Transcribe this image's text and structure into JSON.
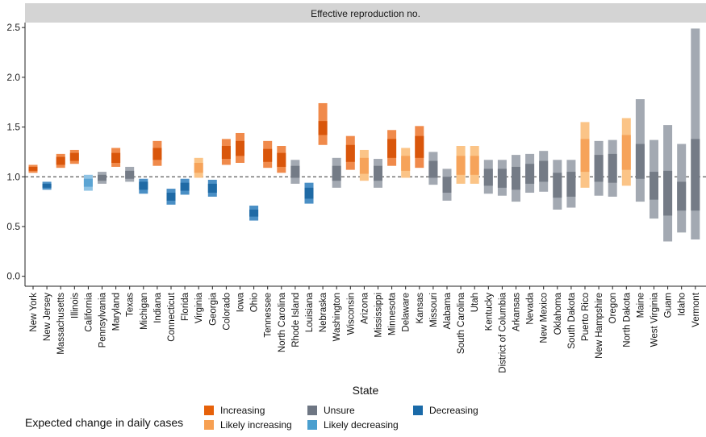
{
  "chart_data": {
    "type": "bar",
    "facet_title": "Effective reproduction no.",
    "xlabel": "State",
    "ylabel": "",
    "ylim": [
      -0.1,
      2.55
    ],
    "yticks": [
      0.0,
      0.5,
      1.0,
      1.5,
      2.0,
      2.5
    ],
    "ytick_labels": [
      "0.0",
      "0.5",
      "1.0",
      "1.5",
      "2.0",
      "2.5"
    ],
    "reference_line": 1.0,
    "categories": [
      "New York",
      "New Jersey",
      "Massachusetts",
      "Illinois",
      "California",
      "Pennsylvania",
      "Maryland",
      "Texas",
      "Michigan",
      "Indiana",
      "Connecticut",
      "Florida",
      "Virginia",
      "Georgia",
      "Colorado",
      "Iowa",
      "Ohio",
      "Tennessee",
      "North Carolina",
      "Rhode Island",
      "Louisiana",
      "Nebraska",
      "Washington",
      "Wisconsin",
      "Arizona",
      "Mississippi",
      "Minnesota",
      "Delaware",
      "Kansas",
      "Missouri",
      "Alabama",
      "South Carolina",
      "Utah",
      "Kentucky",
      "District of Columbia",
      "Arkansas",
      "Nevada",
      "New Mexico",
      "Oklahoma",
      "South Dakota",
      "Puerto Rico",
      "New Hampshire",
      "Oregon",
      "North Dakota",
      "Maine",
      "West Virginia",
      "Guam",
      "Idaho",
      "Vermont"
    ],
    "series_info": "Each state shows a 90% credible interval (outer band) and a 50% credible interval (inner band) for the effective reproduction number, coloured by expected change in daily cases.",
    "data": [
      {
        "state": "New York",
        "category": "Increasing",
        "outer": [
          1.04,
          1.12
        ],
        "inner": [
          1.06,
          1.1
        ]
      },
      {
        "state": "New Jersey",
        "category": "Decreasing",
        "outer": [
          0.87,
          0.95
        ],
        "inner": [
          0.89,
          0.93
        ]
      },
      {
        "state": "Massachusetts",
        "category": "Increasing",
        "outer": [
          1.09,
          1.23
        ],
        "inner": [
          1.12,
          1.2
        ]
      },
      {
        "state": "Illinois",
        "category": "Increasing",
        "outer": [
          1.13,
          1.27
        ],
        "inner": [
          1.16,
          1.24
        ]
      },
      {
        "state": "California",
        "category": "Likely decreasing",
        "outer": [
          0.86,
          1.02
        ],
        "inner": [
          0.9,
          0.98
        ]
      },
      {
        "state": "Pennsylvania",
        "category": "Unsure",
        "outer": [
          0.93,
          1.05
        ],
        "inner": [
          0.96,
          1.02
        ]
      },
      {
        "state": "Maryland",
        "category": "Increasing",
        "outer": [
          1.1,
          1.29
        ],
        "inner": [
          1.14,
          1.24
        ]
      },
      {
        "state": "Texas",
        "category": "Unsure",
        "outer": [
          0.95,
          1.1
        ],
        "inner": [
          0.98,
          1.06
        ]
      },
      {
        "state": "Michigan",
        "category": "Decreasing",
        "outer": [
          0.83,
          0.98
        ],
        "inner": [
          0.87,
          0.95
        ]
      },
      {
        "state": "Indiana",
        "category": "Increasing",
        "outer": [
          1.11,
          1.36
        ],
        "inner": [
          1.17,
          1.29
        ]
      },
      {
        "state": "Connecticut",
        "category": "Decreasing",
        "outer": [
          0.72,
          0.88
        ],
        "inner": [
          0.76,
          0.84
        ]
      },
      {
        "state": "Florida",
        "category": "Decreasing",
        "outer": [
          0.82,
          0.98
        ],
        "inner": [
          0.86,
          0.94
        ]
      },
      {
        "state": "Virginia",
        "category": "Likely increasing",
        "outer": [
          0.99,
          1.19
        ],
        "inner": [
          1.04,
          1.14
        ]
      },
      {
        "state": "Georgia",
        "category": "Decreasing",
        "outer": [
          0.8,
          0.97
        ],
        "inner": [
          0.84,
          0.93
        ]
      },
      {
        "state": "Colorado",
        "category": "Increasing",
        "outer": [
          1.12,
          1.38
        ],
        "inner": [
          1.18,
          1.31
        ]
      },
      {
        "state": "Iowa",
        "category": "Increasing",
        "outer": [
          1.14,
          1.44
        ],
        "inner": [
          1.21,
          1.36
        ]
      },
      {
        "state": "Ohio",
        "category": "Decreasing",
        "outer": [
          0.56,
          0.71
        ],
        "inner": [
          0.6,
          0.67
        ]
      },
      {
        "state": "Tennessee",
        "category": "Increasing",
        "outer": [
          1.09,
          1.36
        ],
        "inner": [
          1.15,
          1.28
        ]
      },
      {
        "state": "North Carolina",
        "category": "Increasing",
        "outer": [
          1.04,
          1.31
        ],
        "inner": [
          1.1,
          1.24
        ]
      },
      {
        "state": "Rhode Island",
        "category": "Unsure",
        "outer": [
          0.93,
          1.17
        ],
        "inner": [
          0.99,
          1.11
        ]
      },
      {
        "state": "Louisiana",
        "category": "Decreasing",
        "outer": [
          0.73,
          0.94
        ],
        "inner": [
          0.78,
          0.89
        ]
      },
      {
        "state": "Nebraska",
        "category": "Increasing",
        "outer": [
          1.32,
          1.74
        ],
        "inner": [
          1.42,
          1.56
        ]
      },
      {
        "state": "Washington",
        "category": "Unsure",
        "outer": [
          0.89,
          1.19
        ],
        "inner": [
          0.96,
          1.11
        ]
      },
      {
        "state": "Wisconsin",
        "category": "Increasing",
        "outer": [
          1.07,
          1.41
        ],
        "inner": [
          1.15,
          1.32
        ]
      },
      {
        "state": "Arizona",
        "category": "Likely increasing",
        "outer": [
          0.96,
          1.27
        ],
        "inner": [
          1.03,
          1.19
        ]
      },
      {
        "state": "Mississippi",
        "category": "Unsure",
        "outer": [
          0.89,
          1.18
        ],
        "inner": [
          0.96,
          1.11
        ]
      },
      {
        "state": "Minnesota",
        "category": "Increasing",
        "outer": [
          1.11,
          1.47
        ],
        "inner": [
          1.19,
          1.38
        ]
      },
      {
        "state": "Delaware",
        "category": "Likely increasing",
        "outer": [
          0.99,
          1.29
        ],
        "inner": [
          1.06,
          1.21
        ]
      },
      {
        "state": "Kansas",
        "category": "Increasing",
        "outer": [
          1.09,
          1.51
        ],
        "inner": [
          1.19,
          1.41
        ]
      },
      {
        "state": "Missouri",
        "category": "Unsure",
        "outer": [
          0.92,
          1.25
        ],
        "inner": [
          0.99,
          1.16
        ]
      },
      {
        "state": "Alabama",
        "category": "Unsure",
        "outer": [
          0.76,
          1.08
        ],
        "inner": [
          0.84,
          1.0
        ]
      },
      {
        "state": "South Carolina",
        "category": "Likely increasing",
        "outer": [
          0.93,
          1.31
        ],
        "inner": [
          1.02,
          1.21
        ]
      },
      {
        "state": "Utah",
        "category": "Likely increasing",
        "outer": [
          0.93,
          1.31
        ],
        "inner": [
          1.02,
          1.21
        ]
      },
      {
        "state": "Kentucky",
        "category": "Unsure",
        "outer": [
          0.83,
          1.17
        ],
        "inner": [
          0.91,
          1.08
        ]
      },
      {
        "state": "District of Columbia",
        "category": "Unsure",
        "outer": [
          0.81,
          1.17
        ],
        "inner": [
          0.89,
          1.08
        ]
      },
      {
        "state": "Arkansas",
        "category": "Unsure",
        "outer": [
          0.75,
          1.22
        ],
        "inner": [
          0.87,
          1.1
        ]
      },
      {
        "state": "Nevada",
        "category": "Unsure",
        "outer": [
          0.84,
          1.23
        ],
        "inner": [
          0.93,
          1.13
        ]
      },
      {
        "state": "New Mexico",
        "category": "Unsure",
        "outer": [
          0.85,
          1.26
        ],
        "inner": [
          0.95,
          1.16
        ]
      },
      {
        "state": "Oklahoma",
        "category": "Unsure",
        "outer": [
          0.67,
          1.17
        ],
        "inner": [
          0.79,
          1.04
        ]
      },
      {
        "state": "South Dakota",
        "category": "Unsure",
        "outer": [
          0.69,
          1.17
        ],
        "inner": [
          0.8,
          1.05
        ]
      },
      {
        "state": "Puerto Rico",
        "category": "Likely increasing",
        "outer": [
          0.89,
          1.55
        ],
        "inner": [
          1.05,
          1.38
        ]
      },
      {
        "state": "New Hampshire",
        "category": "Unsure",
        "outer": [
          0.81,
          1.36
        ],
        "inner": [
          0.95,
          1.22
        ]
      },
      {
        "state": "Oregon",
        "category": "Unsure",
        "outer": [
          0.8,
          1.37
        ],
        "inner": [
          0.94,
          1.23
        ]
      },
      {
        "state": "North Dakota",
        "category": "Likely increasing",
        "outer": [
          0.91,
          1.59
        ],
        "inner": [
          1.07,
          1.42
        ]
      },
      {
        "state": "Maine",
        "category": "Unsure",
        "outer": [
          0.75,
          1.78
        ],
        "inner": [
          0.98,
          1.33
        ]
      },
      {
        "state": "West Virginia",
        "category": "Unsure",
        "outer": [
          0.58,
          1.37
        ],
        "inner": [
          0.77,
          1.05
        ]
      },
      {
        "state": "Guam",
        "category": "Unsure",
        "outer": [
          0.35,
          1.52
        ],
        "inner": [
          0.61,
          1.06
        ]
      },
      {
        "state": "Idaho",
        "category": "Unsure",
        "outer": [
          0.44,
          1.33
        ],
        "inner": [
          0.66,
          0.95
        ]
      },
      {
        "state": "Vermont",
        "category": "Unsure",
        "outer": [
          0.37,
          2.49
        ],
        "inner": [
          0.66,
          1.38
        ]
      }
    ],
    "legend": {
      "title": "Expected change in daily cases",
      "position": "bottom",
      "items": [
        {
          "label": "Increasing",
          "color": "#E6610A"
        },
        {
          "label": "Likely increasing",
          "color": "#F7A052"
        },
        {
          "label": "Unsure",
          "color": "#6E7683"
        },
        {
          "label": "Likely decreasing",
          "color": "#4A9FCF"
        },
        {
          "label": "Decreasing",
          "color": "#1A6AA8"
        }
      ]
    },
    "colors": {
      "Increasing": {
        "outer": "#F08A4B",
        "inner": "#D9560B"
      },
      "Likely increasing": {
        "outer": "#FBC487",
        "inner": "#F6A35A"
      },
      "Unsure": {
        "outer": "#A3A9B2",
        "inner": "#747B86"
      },
      "Likely decreasing": {
        "outer": "#8FC3E4",
        "inner": "#5BA4D3"
      },
      "Decreasing": {
        "outer": "#4A8FC5",
        "inner": "#1F6AA5"
      }
    },
    "grid": false
  }
}
